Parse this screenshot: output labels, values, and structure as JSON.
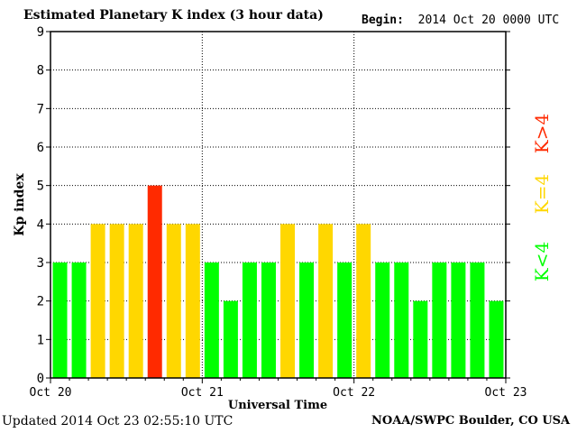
{
  "header": {
    "title": "Estimated Planetary K index (3 hour data)",
    "begin_label": "Begin:",
    "begin_value": "2014 Oct 20 0000 UTC"
  },
  "footer": {
    "updated": "Updated 2014 Oct 23 02:55:10 UTC",
    "credit": "NOAA/SWPC Boulder, CO USA"
  },
  "legend": {
    "high": "K>4",
    "mid": "K=4",
    "low": "K<4"
  },
  "colors": {
    "low": "#00ff00",
    "mid": "#ffd700",
    "high": "#ff2a00",
    "grid": "#000000"
  },
  "chart_data": {
    "type": "bar",
    "title": "Estimated Planetary K index (3 hour data)",
    "xlabel": "Universal Time",
    "ylabel": "Kp index",
    "ylim": [
      0,
      9
    ],
    "yticks": [
      0,
      1,
      2,
      3,
      4,
      5,
      6,
      7,
      8,
      9
    ],
    "xtick_labels": [
      "Oct 20",
      "Oct 21",
      "Oct 22",
      "Oct 23"
    ],
    "grid": true,
    "bar_interval_hours": 3,
    "values": [
      3,
      3,
      4,
      4,
      4,
      5,
      4,
      4,
      3,
      2,
      3,
      3,
      4,
      3,
      4,
      3,
      4,
      3,
      3,
      2,
      3,
      3,
      3,
      2
    ]
  }
}
